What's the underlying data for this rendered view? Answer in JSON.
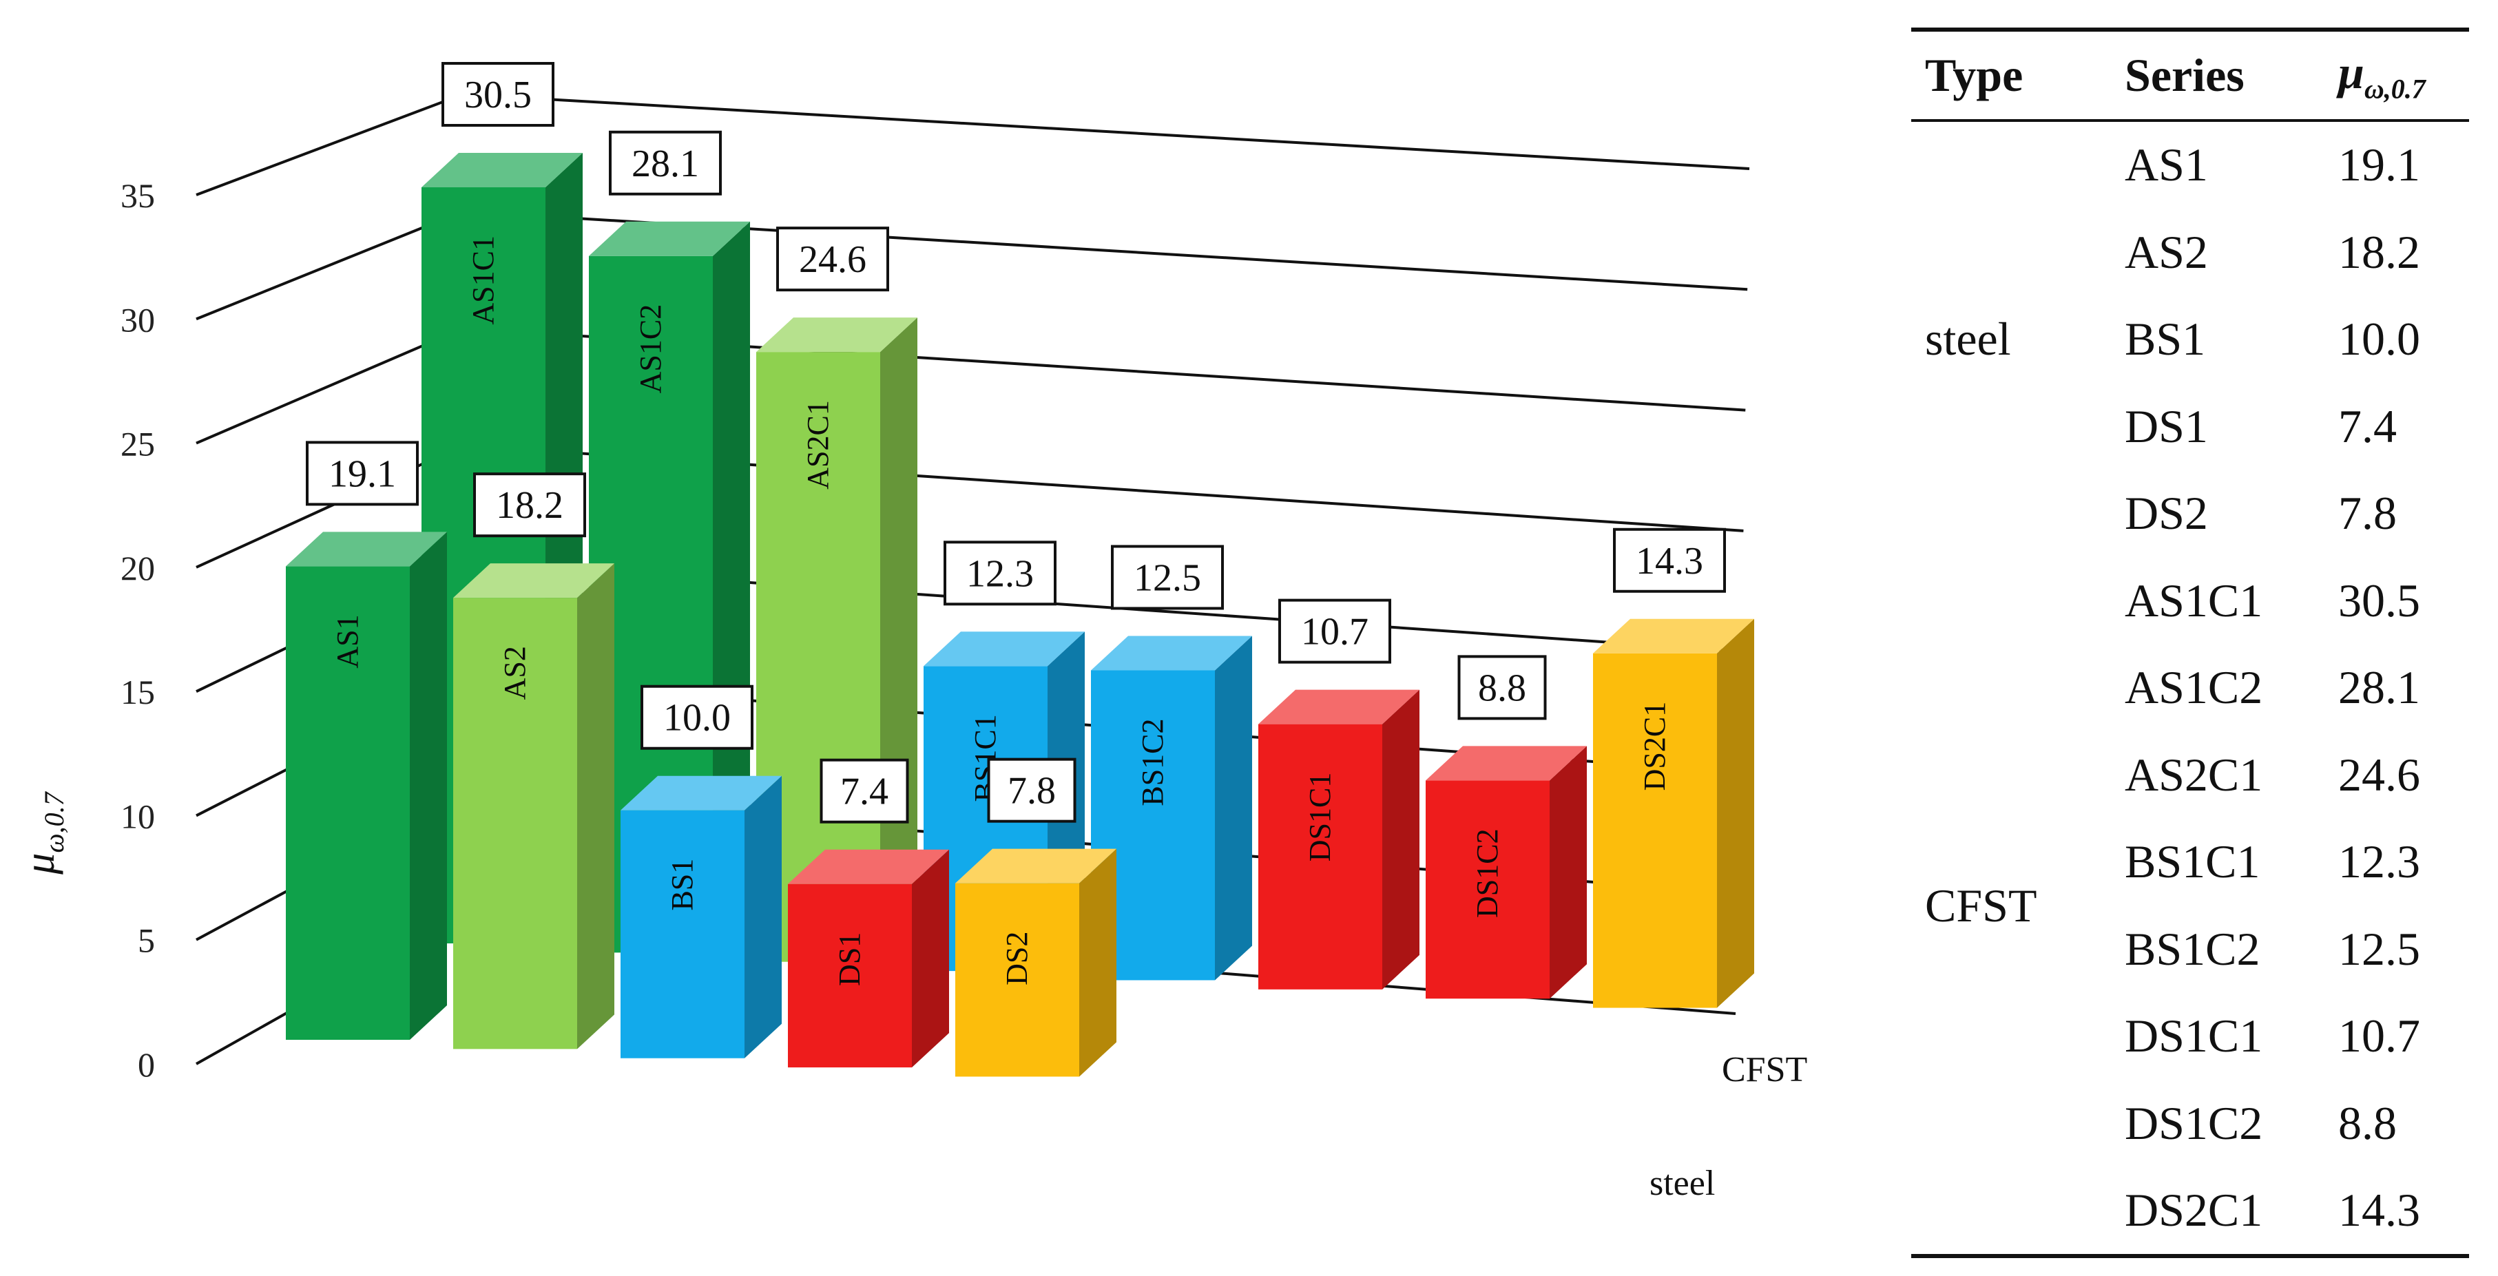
{
  "chart_data": [
    {
      "type": "bar",
      "subtype": "3d-grouped",
      "title": "",
      "ylabel": "μω,0.7",
      "ylim": [
        0,
        35
      ],
      "yticks": [
        0,
        5,
        10,
        15,
        20,
        25,
        30,
        35
      ],
      "depth_categories": [
        "steel",
        "CFST"
      ],
      "grid": true,
      "series": [
        {
          "name": "AS1",
          "type": "steel",
          "value": 19.1,
          "value_label": "19.1",
          "color": "#0fa14a"
        },
        {
          "name": "AS1C1",
          "type": "CFST",
          "value": 30.5,
          "value_label": "30.5",
          "color": "#0fa14a"
        },
        {
          "name": "AS2",
          "type": "steel",
          "value": 18.2,
          "value_label": "18.2",
          "color": "#8ed14f"
        },
        {
          "name": "AS1C2",
          "type": "CFST",
          "value": 28.1,
          "value_label": "28.1",
          "color": "#0fa14a"
        },
        {
          "name": "AS2C1",
          "type": "CFST",
          "value": 24.6,
          "value_label": "24.6",
          "color": "#8ed14f"
        },
        {
          "name": "BS1",
          "type": "steel",
          "value": 10.0,
          "value_label": "10.0",
          "color": "#12aaeb"
        },
        {
          "name": "BS1C1",
          "type": "CFST",
          "value": 12.3,
          "value_label": "12.3",
          "color": "#12aaeb"
        },
        {
          "name": "DS1",
          "type": "steel",
          "value": 7.4,
          "value_label": "7.4",
          "color": "#ee1c1c"
        },
        {
          "name": "BS1C2",
          "type": "CFST",
          "value": 12.5,
          "value_label": "12.5",
          "color": "#12aaeb"
        },
        {
          "name": "DS2",
          "type": "steel",
          "value": 7.8,
          "value_label": "7.8",
          "color": "#fcbd0c"
        },
        {
          "name": "DS1C1",
          "type": "CFST",
          "value": 10.7,
          "value_label": "10.7",
          "color": "#ee1c1c"
        },
        {
          "name": "DS1C2",
          "type": "CFST",
          "value": 8.8,
          "value_label": "8.8",
          "color": "#ee1c1c"
        },
        {
          "name": "DS2C1",
          "type": "CFST",
          "value": 14.3,
          "value_label": "14.3",
          "color": "#fcbd0c"
        }
      ]
    },
    {
      "type": "table",
      "columns": [
        "Type",
        "Series",
        "μω,0.7"
      ],
      "groups": [
        {
          "type": "steel",
          "rows": [
            {
              "series": "AS1",
              "value": "19.1"
            },
            {
              "series": "AS2",
              "value": "18.2"
            },
            {
              "series": "BS1",
              "value": "10.0"
            },
            {
              "series": "DS1",
              "value": "7.4"
            },
            {
              "series": "DS2",
              "value": "7.8"
            }
          ]
        },
        {
          "type": "CFST",
          "rows": [
            {
              "series": "AS1C1",
              "value": "30.5"
            },
            {
              "series": "AS1C2",
              "value": "28.1"
            },
            {
              "series": "AS2C1",
              "value": "24.6"
            },
            {
              "series": "BS1C1",
              "value": "12.3"
            },
            {
              "series": "BS1C2",
              "value": "12.5"
            },
            {
              "series": "DS1C1",
              "value": "10.7"
            },
            {
              "series": "DS1C2",
              "value": "8.8"
            },
            {
              "series": "DS2C1",
              "value": "14.3"
            }
          ]
        }
      ]
    }
  ],
  "table": {
    "header": {
      "type": "Type",
      "series": "Series",
      "mu_base": "μ",
      "mu_sub": "ω,0.7"
    },
    "rows": [
      {
        "type": "steel",
        "series": "AS1",
        "value": "19.1"
      },
      {
        "type": "",
        "series": "AS2",
        "value": "18.2"
      },
      {
        "type": "",
        "series": "BS1",
        "value": "10.0"
      },
      {
        "type": "",
        "series": "DS1",
        "value": "7.4"
      },
      {
        "type": "",
        "series": "DS2",
        "value": "7.8"
      },
      {
        "type": "CFST",
        "series": "AS1C1",
        "value": "30.5"
      },
      {
        "type": "",
        "series": "AS1C2",
        "value": "28.1"
      },
      {
        "type": "",
        "series": "AS2C1",
        "value": "24.6"
      },
      {
        "type": "",
        "series": "BS1C1",
        "value": "12.3"
      },
      {
        "type": "",
        "series": "BS1C2",
        "value": "12.5"
      },
      {
        "type": "",
        "series": "DS1C1",
        "value": "10.7"
      },
      {
        "type": "",
        "series": "DS1C2",
        "value": "8.8"
      },
      {
        "type": "",
        "series": "DS2C1",
        "value": "14.3"
      }
    ]
  },
  "axis": {
    "ylabel_base": "μ",
    "ylabel_sub": "ω,0.7",
    "cat_steel": "steel",
    "cat_cfst": "CFST"
  }
}
